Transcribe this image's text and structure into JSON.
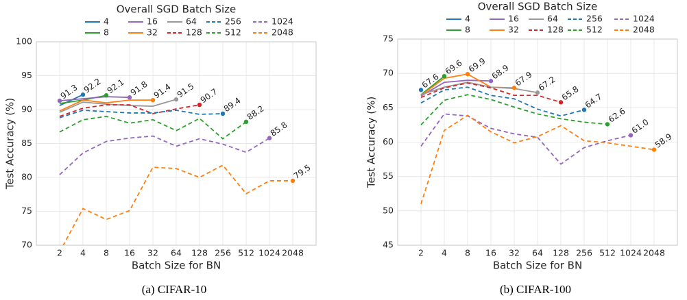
{
  "chart_data": [
    {
      "type": "line",
      "caption": "(a) CIFAR-10",
      "xlabel": "Batch Size for BN",
      "ylabel": "Test Accuracy (%)",
      "legend_title": "Overall SGD Batch Size",
      "legend": "upper center",
      "grid": true,
      "categories": [
        "2",
        "4",
        "8",
        "16",
        "32",
        "64",
        "128",
        "256",
        "512",
        "1024",
        "2048"
      ],
      "ylim": [
        70,
        100
      ],
      "yticks": [
        70,
        75,
        80,
        85,
        90,
        95,
        100
      ],
      "series": [
        {
          "name": "4",
          "color": "#1f77b4",
          "linestyle": "solid",
          "values": [
            90.6,
            92.2,
            null,
            null,
            null,
            null,
            null,
            null,
            null,
            null,
            null
          ],
          "value_labels": [
            null,
            "92.2",
            null,
            null,
            null,
            null,
            null,
            null,
            null,
            null,
            null
          ]
        },
        {
          "name": "8",
          "color": "#2ca02c",
          "linestyle": "solid",
          "values": [
            90.9,
            91.4,
            92.1,
            null,
            null,
            null,
            null,
            null,
            null,
            null,
            null
          ],
          "value_labels": [
            null,
            null,
            "92.1",
            null,
            null,
            null,
            null,
            null,
            null,
            null,
            null
          ]
        },
        {
          "name": "16",
          "color": "#9467bd",
          "linestyle": "solid",
          "values": [
            91.3,
            91.6,
            91.9,
            91.8,
            null,
            null,
            null,
            null,
            null,
            null,
            null
          ],
          "value_labels": [
            "91.3",
            null,
            null,
            "91.8",
            null,
            null,
            null,
            null,
            null,
            null,
            null
          ]
        },
        {
          "name": "32",
          "color": "#ff7f0e",
          "linestyle": "solid",
          "values": [
            89.8,
            91.4,
            91.0,
            91.4,
            91.4,
            null,
            null,
            null,
            null,
            null,
            null
          ],
          "value_labels": [
            null,
            null,
            null,
            null,
            "91.4",
            null,
            null,
            null,
            null,
            null,
            null
          ]
        },
        {
          "name": "64",
          "color": "#999999",
          "linestyle": "solid",
          "values": [
            89.6,
            91.1,
            90.8,
            90.6,
            90.5,
            91.5,
            null,
            null,
            null,
            null,
            null
          ],
          "value_labels": [
            null,
            null,
            null,
            null,
            null,
            "91.5",
            null,
            null,
            null,
            null,
            null
          ]
        },
        {
          "name": "128",
          "color": "#d62728",
          "linestyle": "dashed",
          "values": [
            89.0,
            90.2,
            90.7,
            90.7,
            89.4,
            90.1,
            90.7,
            null,
            null,
            null,
            null
          ],
          "value_labels": [
            null,
            null,
            null,
            null,
            null,
            null,
            "90.7",
            null,
            null,
            null,
            null
          ]
        },
        {
          "name": "256",
          "color": "#1f77b4",
          "linestyle": "dashed",
          "values": [
            88.8,
            89.9,
            89.7,
            89.5,
            89.5,
            89.9,
            89.3,
            89.4,
            null,
            null,
            null
          ],
          "value_labels": [
            null,
            null,
            null,
            null,
            null,
            null,
            null,
            "89.4",
            null,
            null,
            null
          ]
        },
        {
          "name": "512",
          "color": "#2ca02c",
          "linestyle": "dashed",
          "values": [
            86.7,
            88.5,
            89.0,
            88.0,
            88.5,
            86.9,
            88.7,
            85.7,
            88.2,
            null,
            null
          ],
          "value_labels": [
            null,
            null,
            null,
            null,
            null,
            null,
            null,
            null,
            "88.2",
            null,
            null
          ]
        },
        {
          "name": "1024",
          "color": "#9467bd",
          "linestyle": "dashed",
          "values": [
            80.4,
            83.6,
            85.3,
            85.8,
            86.1,
            84.6,
            85.7,
            84.9,
            83.7,
            85.8,
            null
          ],
          "value_labels": [
            null,
            null,
            null,
            null,
            null,
            null,
            null,
            null,
            null,
            "85.8",
            null
          ]
        },
        {
          "name": "2048",
          "color": "#ff7f0e",
          "linestyle": "dashed",
          "values": [
            69.0,
            75.4,
            73.8,
            75.1,
            81.5,
            81.3,
            80.0,
            81.8,
            77.6,
            79.5,
            79.5
          ],
          "value_labels": [
            null,
            null,
            null,
            null,
            null,
            null,
            null,
            null,
            null,
            null,
            "79.5"
          ]
        }
      ]
    },
    {
      "type": "line",
      "caption": "(b) CIFAR-100",
      "xlabel": "Batch Size for BN",
      "ylabel": "Test Accuracy (%)",
      "legend_title": "Overall SGD Batch Size",
      "legend": "upper center",
      "grid": true,
      "categories": [
        "2",
        "4",
        "8",
        "16",
        "32",
        "64",
        "128",
        "256",
        "512",
        "1024",
        "2048"
      ],
      "ylim": [
        45,
        75
      ],
      "yticks": [
        45,
        50,
        55,
        60,
        65,
        70,
        75
      ],
      "series": [
        {
          "name": "4",
          "color": "#1f77b4",
          "linestyle": "solid",
          "values": [
            67.6,
            null,
            null,
            null,
            null,
            null,
            null,
            null,
            null,
            null,
            null
          ],
          "value_labels": [
            "67.6",
            null,
            null,
            null,
            null,
            null,
            null,
            null,
            null,
            null,
            null
          ]
        },
        {
          "name": "8",
          "color": "#2ca02c",
          "linestyle": "solid",
          "values": [
            66.9,
            69.6,
            null,
            null,
            null,
            null,
            null,
            null,
            null,
            null,
            null
          ],
          "value_labels": [
            null,
            "69.6",
            null,
            null,
            null,
            null,
            null,
            null,
            null,
            null,
            null
          ]
        },
        {
          "name": "16",
          "color": "#9467bd",
          "linestyle": "solid",
          "values": [
            66.7,
            68.7,
            69.0,
            68.9,
            null,
            null,
            null,
            null,
            null,
            null,
            null
          ],
          "value_labels": [
            null,
            null,
            null,
            "68.9",
            null,
            null,
            null,
            null,
            null,
            null,
            null
          ]
        },
        {
          "name": "32",
          "color": "#ff7f0e",
          "linestyle": "solid",
          "values": [
            66.8,
            69.3,
            69.9,
            68.0,
            67.9,
            null,
            null,
            null,
            null,
            null,
            null
          ],
          "value_labels": [
            null,
            null,
            "69.9",
            null,
            "67.9",
            null,
            null,
            null,
            null,
            null,
            null
          ]
        },
        {
          "name": "64",
          "color": "#999999",
          "linestyle": "solid",
          "values": [
            66.9,
            68.0,
            68.7,
            68.0,
            67.8,
            67.2,
            null,
            null,
            null,
            null,
            null
          ],
          "value_labels": [
            null,
            null,
            null,
            null,
            null,
            "67.2",
            null,
            null,
            null,
            null,
            null
          ]
        },
        {
          "name": "128",
          "color": "#d62728",
          "linestyle": "dashed",
          "values": [
            66.5,
            67.9,
            68.6,
            67.9,
            66.8,
            66.8,
            65.8,
            null,
            null,
            null,
            null
          ],
          "value_labels": [
            null,
            null,
            null,
            null,
            null,
            null,
            "65.8",
            null,
            null,
            null,
            null
          ]
        },
        {
          "name": "256",
          "color": "#1f77b4",
          "linestyle": "dashed",
          "values": [
            65.7,
            67.6,
            68.0,
            66.8,
            66.3,
            64.8,
            63.8,
            64.7,
            null,
            null,
            null
          ],
          "value_labels": [
            null,
            null,
            null,
            null,
            null,
            null,
            null,
            "64.7",
            null,
            null,
            null
          ]
        },
        {
          "name": "512",
          "color": "#2ca02c",
          "linestyle": "dashed",
          "values": [
            62.5,
            66.1,
            66.9,
            66.2,
            65.1,
            64.1,
            63.4,
            62.9,
            62.6,
            null,
            null
          ],
          "value_labels": [
            null,
            null,
            null,
            null,
            null,
            null,
            null,
            null,
            "62.6",
            null,
            null
          ]
        },
        {
          "name": "1024",
          "color": "#9467bd",
          "linestyle": "dashed",
          "values": [
            59.4,
            64.1,
            63.8,
            62.0,
            61.2,
            60.7,
            56.8,
            59.2,
            60.2,
            61.0,
            null
          ],
          "value_labels": [
            null,
            null,
            null,
            null,
            null,
            null,
            null,
            null,
            null,
            "61.0",
            null
          ]
        },
        {
          "name": "2048",
          "color": "#ff7f0e",
          "linestyle": "dashed",
          "values": [
            51.0,
            61.7,
            63.9,
            61.5,
            59.9,
            60.8,
            62.4,
            60.2,
            59.9,
            59.4,
            58.9
          ],
          "value_labels": [
            null,
            null,
            null,
            null,
            null,
            null,
            null,
            null,
            null,
            null,
            "58.9"
          ]
        }
      ]
    }
  ]
}
